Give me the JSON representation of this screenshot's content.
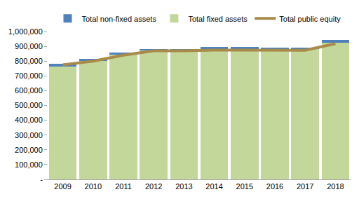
{
  "chart_data": {
    "type": "bar",
    "stacked": true,
    "grid": false,
    "legend": "top",
    "categories": [
      "2009",
      "2010",
      "2011",
      "2012",
      "2013",
      "2014",
      "2015",
      "2016",
      "2017",
      "2018"
    ],
    "series": [
      {
        "name": "Total non-fixed assets",
        "type": "bar",
        "color": "#4f81bd",
        "values": [
          15000,
          13000,
          13000,
          10000,
          8000,
          13000,
          13000,
          10000,
          10000,
          17000
        ]
      },
      {
        "name": "Total fixed assets",
        "type": "bar",
        "color": "#c4d79b",
        "values": [
          765000,
          800000,
          845000,
          873000,
          872000,
          882000,
          882000,
          880000,
          880000,
          925000
        ]
      },
      {
        "name": "Total public equity",
        "type": "line",
        "color": "#a88a4b",
        "values": [
          775000,
          800000,
          840000,
          870000,
          870000,
          875000,
          875000,
          872000,
          873000,
          918000
        ]
      }
    ],
    "ylim": [
      0,
      1000000
    ],
    "yticks": [
      {
        "value": 0,
        "label": "-"
      },
      {
        "value": 100000,
        "label": "100,000"
      },
      {
        "value": 200000,
        "label": "200,000"
      },
      {
        "value": 300000,
        "label": "300,000"
      },
      {
        "value": 400000,
        "label": "400,000"
      },
      {
        "value": 500000,
        "label": "500,000"
      },
      {
        "value": 600000,
        "label": "600,000"
      },
      {
        "value": 700000,
        "label": "700,000"
      },
      {
        "value": 800000,
        "label": "800,000"
      },
      {
        "value": 900000,
        "label": "900,000"
      },
      {
        "value": {
          "value": 1000000,
          "label": "1,000,000"
        }
      }
    ]
  }
}
